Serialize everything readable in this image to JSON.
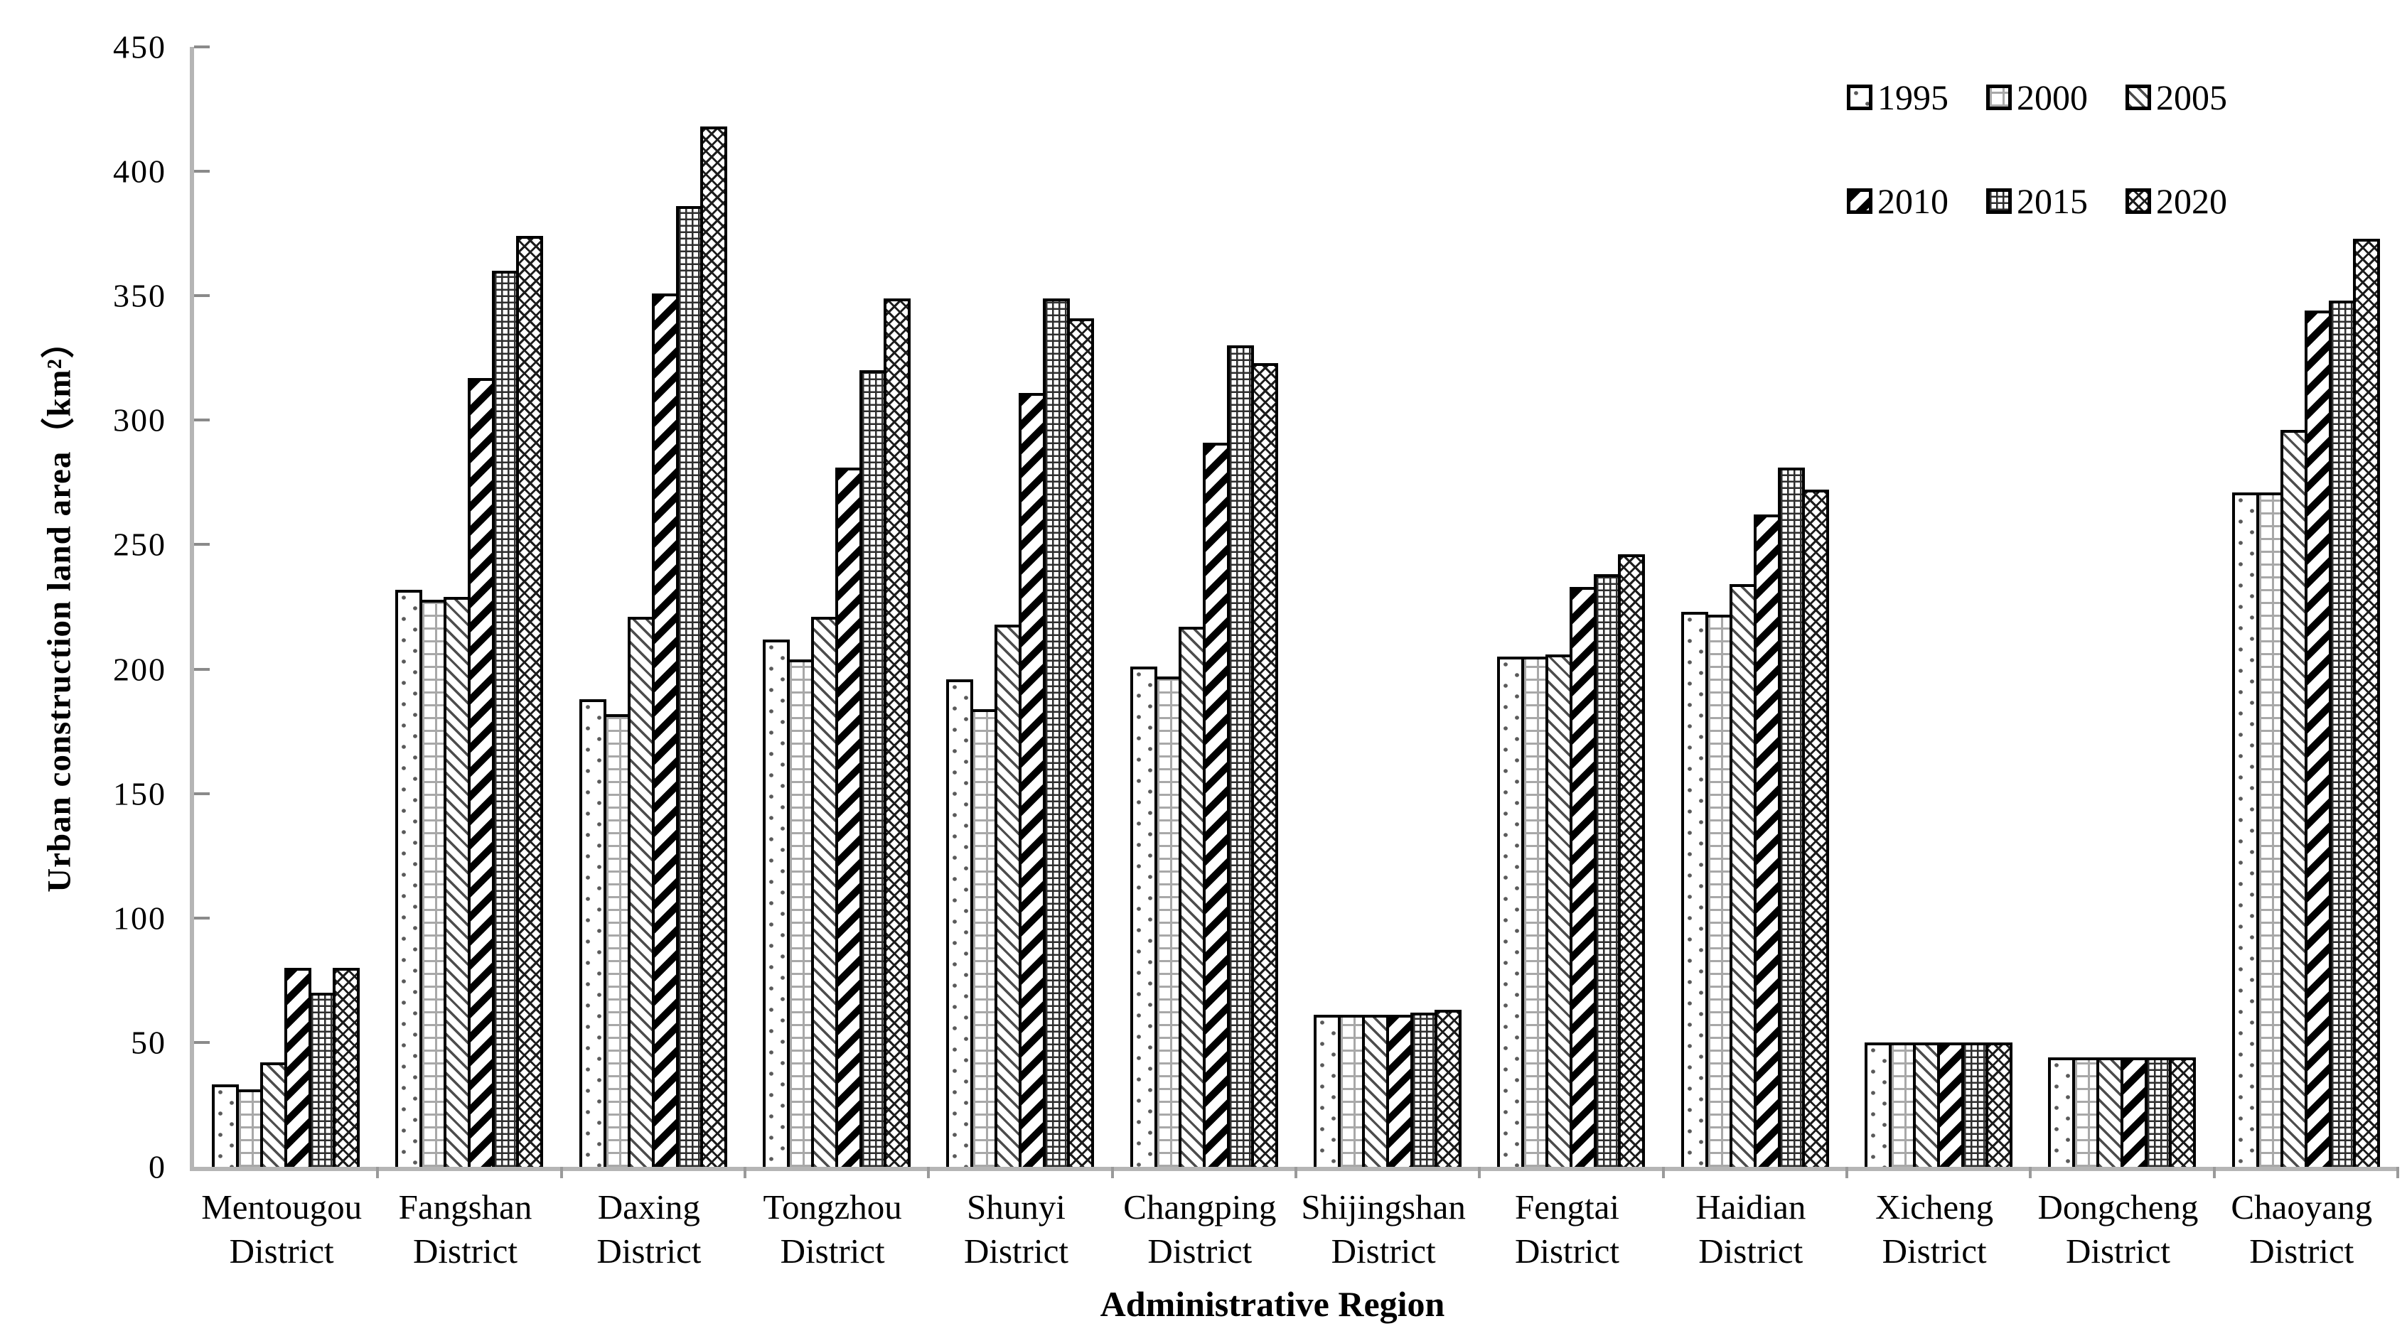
{
  "y_axis": {
    "title": "Urban construction land area（km²）",
    "tick_values": [
      0,
      50,
      100,
      150,
      200,
      250,
      300,
      350,
      400,
      450
    ]
  },
  "x_axis": {
    "title": "Administrative Region"
  },
  "legend": {
    "position": "top-right",
    "items": [
      {
        "label": "1995",
        "pattern": "sparse-dots"
      },
      {
        "label": "2000",
        "pattern": "light-grid"
      },
      {
        "label": "2005",
        "pattern": "thin-downward-diagonal"
      },
      {
        "label": "2010",
        "pattern": "thick-upward-diagonal"
      },
      {
        "label": "2015",
        "pattern": "fine-dark-grid"
      },
      {
        "label": "2020",
        "pattern": "diagonal-crosshatch"
      }
    ]
  },
  "chart_data": {
    "type": "bar",
    "title": "",
    "xlabel": "Administrative Region",
    "ylabel": "Urban construction land area（km²）",
    "ylim": [
      0,
      450
    ],
    "ytick_step": 50,
    "grid": false,
    "legend_position": "top-right",
    "categories": [
      {
        "line1": "Mentougou",
        "line2": "District"
      },
      {
        "line1": "Fangshan",
        "line2": "District"
      },
      {
        "line1": "Daxing",
        "line2": "District"
      },
      {
        "line1": "Tongzhou",
        "line2": "District"
      },
      {
        "line1": "Shunyi",
        "line2": "District"
      },
      {
        "line1": "Changping",
        "line2": "District"
      },
      {
        "line1": "Shijingshan",
        "line2": "District"
      },
      {
        "line1": "Fengtai",
        "line2": "District"
      },
      {
        "line1": "Haidian",
        "line2": "District"
      },
      {
        "line1": "Xicheng",
        "line2": "District"
      },
      {
        "line1": "Dongcheng",
        "line2": "District"
      },
      {
        "line1": "Chaoyang",
        "line2": "District"
      }
    ],
    "series": [
      {
        "name": "1995",
        "pattern": "sparse-dots",
        "values": [
          33,
          232,
          188,
          212,
          196,
          201,
          61,
          205,
          223,
          50,
          44,
          271
        ]
      },
      {
        "name": "2000",
        "pattern": "light-grid",
        "values": [
          31,
          228,
          182,
          204,
          184,
          197,
          61,
          205,
          222,
          50,
          44,
          271
        ]
      },
      {
        "name": "2005",
        "pattern": "thin-downward-diagonal",
        "values": [
          42,
          229,
          221,
          221,
          218,
          217,
          61,
          206,
          234,
          50,
          44,
          296
        ]
      },
      {
        "name": "2010",
        "pattern": "thick-upward-diagonal",
        "values": [
          80,
          317,
          351,
          281,
          311,
          291,
          61,
          233,
          262,
          50,
          44,
          344
        ]
      },
      {
        "name": "2015",
        "pattern": "fine-dark-grid",
        "values": [
          70,
          360,
          386,
          320,
          349,
          330,
          62,
          238,
          281,
          50,
          44,
          348
        ]
      },
      {
        "name": "2020",
        "pattern": "diagonal-crosshatch",
        "values": [
          80,
          374,
          418,
          349,
          341,
          323,
          63,
          246,
          272,
          50,
          44,
          373
        ]
      }
    ]
  }
}
